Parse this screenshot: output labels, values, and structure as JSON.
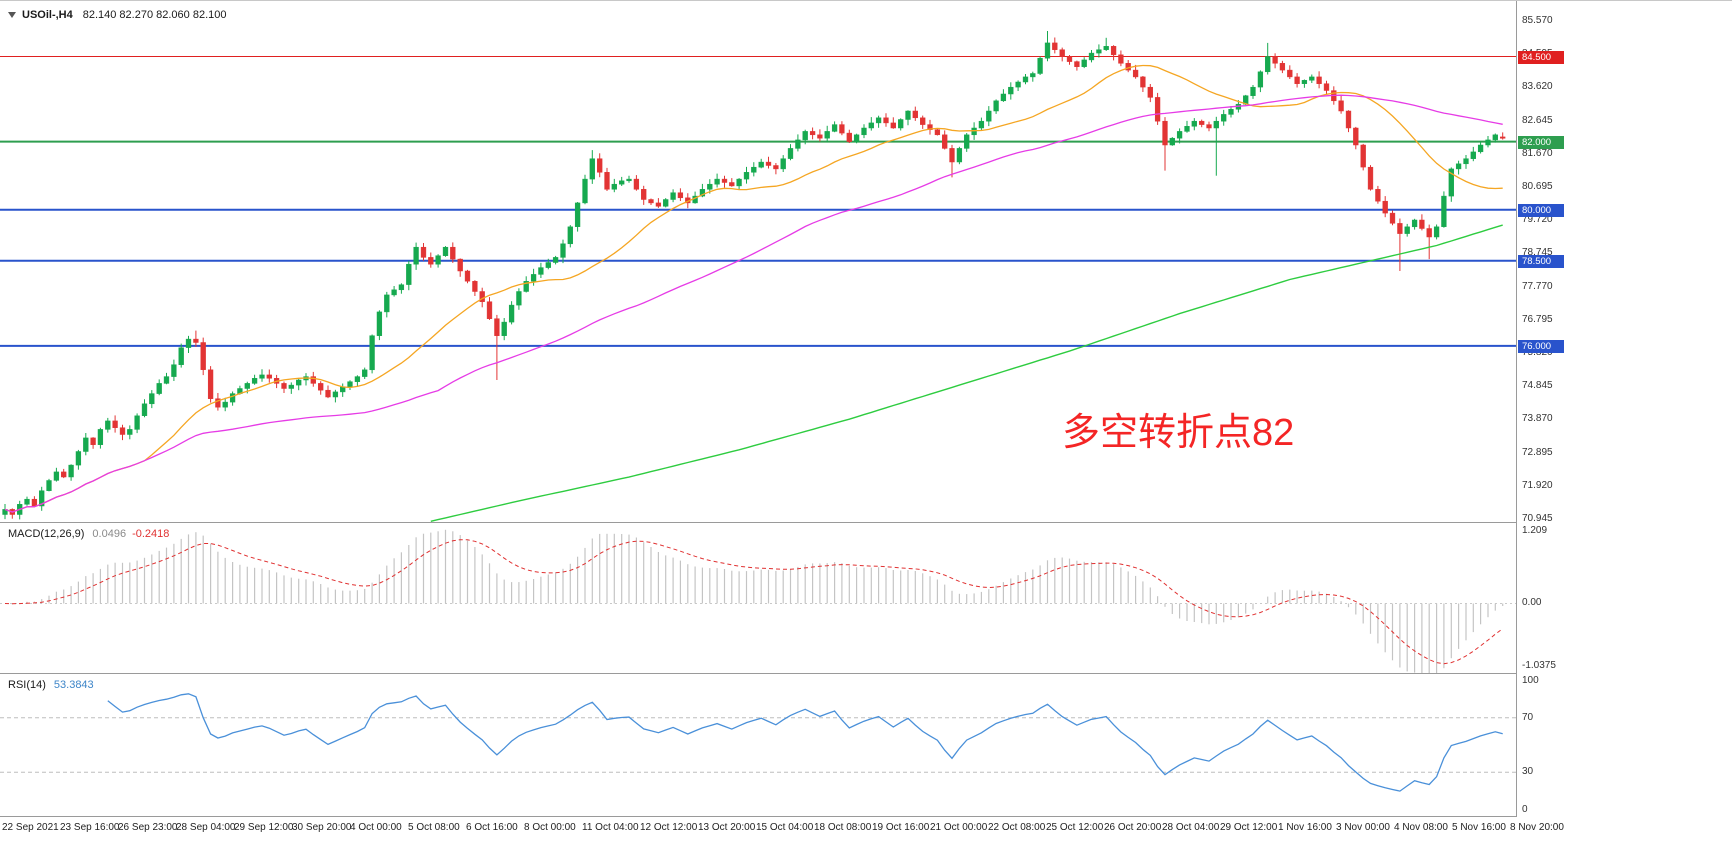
{
  "main_chart": {
    "title": {
      "symbol": "USOil-,H4",
      "ohlc": "82.140 82.270 82.060 82.100"
    },
    "annotation": {
      "text": "多空转折点82",
      "color": "#f42525"
    }
  },
  "macd_panel": {
    "label": "MACD(12,26,9)",
    "value_main": "0.0496",
    "value_signal": "-0.2418",
    "axis_labels": [
      "1.209",
      "0.00",
      "-1.0375"
    ]
  },
  "rsi_panel": {
    "label": "RSI(14)",
    "value": "53.3843",
    "axis_labels": [
      "100",
      "70",
      "30",
      "0"
    ],
    "level_lines": [
      70,
      30
    ]
  },
  "price_axis": {
    "labels": [
      "85.570",
      "84.595",
      "83.620",
      "82.645",
      "81.670",
      "80.695",
      "79.720",
      "78.745",
      "77.770",
      "76.795",
      "75.820",
      "74.845",
      "73.870",
      "72.895",
      "71.920",
      "70.945"
    ]
  },
  "time_axis": {
    "labels": [
      "22 Sep 2021",
      "23 Sep 16:00",
      "26 Sep 23:00",
      "28 Sep 04:00",
      "29 Sep 12:00",
      "30 Sep 20:00",
      "4 Oct 00:00",
      "5 Oct 08:00",
      "6 Oct 16:00",
      "8 Oct 00:00",
      "11 Oct 04:00",
      "12 Oct 12:00",
      "13 Oct 20:00",
      "15 Oct 04:00",
      "18 Oct 08:00",
      "19 Oct 16:00",
      "21 Oct 00:00",
      "22 Oct 08:00",
      "25 Oct 12:00",
      "26 Oct 20:00",
      "28 Oct 04:00",
      "29 Oct 12:00",
      "1 Nov 16:00",
      "3 Nov 00:00",
      "4 Nov 08:00",
      "5 Nov 16:00",
      "8 Nov 20:00"
    ]
  },
  "chart_data": {
    "type": "candlestick",
    "symbol": "USOil-",
    "timeframe": "H4",
    "price_range": [
      70.83,
      86.13
    ],
    "up_color": "#16a94f",
    "down_color": "#e23434",
    "closes": [
      71.2,
      71.05,
      71.35,
      71.5,
      71.3,
      71.75,
      72.05,
      72.3,
      72.15,
      72.5,
      72.9,
      73.3,
      73.1,
      73.55,
      73.8,
      73.6,
      73.4,
      73.55,
      73.95,
      74.3,
      74.6,
      74.9,
      75.1,
      75.45,
      75.95,
      76.2,
      76.1,
      75.3,
      74.45,
      74.2,
      74.35,
      74.6,
      74.75,
      74.9,
      75.05,
      75.15,
      75.05,
      74.9,
      74.75,
      74.85,
      75.0,
      75.1,
      74.9,
      74.7,
      74.5,
      74.65,
      74.8,
      74.95,
      75.1,
      75.3,
      76.3,
      77.0,
      77.5,
      77.65,
      77.8,
      78.4,
      78.9,
      78.6,
      78.4,
      78.65,
      78.9,
      78.55,
      78.2,
      77.9,
      77.6,
      77.3,
      76.8,
      76.3,
      76.7,
      77.2,
      77.6,
      77.9,
      78.1,
      78.3,
      78.45,
      78.6,
      79.0,
      79.5,
      80.2,
      80.9,
      81.5,
      81.1,
      80.6,
      80.75,
      80.85,
      80.9,
      80.6,
      80.3,
      80.2,
      80.1,
      80.3,
      80.5,
      80.35,
      80.2,
      80.4,
      80.6,
      80.75,
      80.9,
      80.8,
      80.7,
      80.9,
      81.1,
      81.25,
      81.4,
      81.3,
      81.2,
      81.5,
      81.8,
      82.05,
      82.3,
      82.2,
      82.1,
      82.3,
      82.5,
      82.25,
      82.0,
      82.2,
      82.4,
      82.55,
      82.7,
      82.55,
      82.4,
      82.65,
      82.9,
      82.7,
      82.5,
      82.35,
      82.2,
      81.8,
      81.4,
      81.8,
      82.2,
      82.4,
      82.6,
      82.9,
      83.2,
      83.4,
      83.6,
      83.75,
      83.9,
      84.0,
      84.45,
      84.9,
      84.7,
      84.5,
      84.35,
      84.2,
      84.4,
      84.6,
      84.7,
      84.8,
      84.55,
      84.3,
      84.1,
      83.9,
      83.6,
      83.3,
      82.6,
      81.9,
      82.1,
      82.3,
      82.45,
      82.6,
      82.5,
      82.4,
      82.6,
      82.8,
      82.95,
      83.1,
      83.35,
      83.6,
      84.05,
      84.5,
      84.3,
      84.1,
      83.9,
      83.7,
      83.8,
      83.9,
      83.7,
      83.5,
      83.2,
      82.9,
      82.4,
      81.9,
      81.25,
      80.6,
      80.25,
      79.9,
      79.6,
      79.3,
      79.5,
      79.7,
      79.45,
      79.2,
      79.5,
      80.4,
      81.2,
      81.35,
      81.5,
      81.7,
      81.9,
      82.05,
      82.2,
      82.1
    ],
    "wick_overrides": {
      "26": {
        "high": 76.45
      },
      "67": {
        "low": 75.0
      },
      "80": {
        "high": 81.75
      },
      "129": {
        "low": 80.95
      },
      "142": {
        "high": 85.25
      },
      "150": {
        "high": 85.05
      },
      "158": {
        "low": 81.15
      },
      "165": {
        "low": 81.0
      },
      "172": {
        "high": 84.9
      },
      "190": {
        "low": 78.2
      },
      "194": {
        "low": 78.55
      },
      "204": {
        "o": 82.14,
        "h": 82.27,
        "l": 82.06,
        "c": 82.1
      }
    },
    "moving_averages": {
      "fast": {
        "period": 20,
        "color": "#f5a623"
      },
      "mid": {
        "period": 60,
        "color": "#e63ce6"
      },
      "slow": {
        "color": "#2ecc40",
        "anchors": [
          [
            58,
            70.85
          ],
          [
            70,
            71.45
          ],
          [
            85,
            72.15
          ],
          [
            100,
            72.95
          ],
          [
            115,
            73.85
          ],
          [
            130,
            74.85
          ],
          [
            145,
            75.85
          ],
          [
            160,
            76.95
          ],
          [
            175,
            77.95
          ],
          [
            185,
            78.45
          ],
          [
            195,
            78.95
          ],
          [
            204,
            79.55
          ]
        ]
      }
    },
    "levels": [
      {
        "price": 84.5,
        "label": "84.500",
        "color": "#e02020",
        "width": 1
      },
      {
        "price": 82.0,
        "label": "82.000",
        "color": "#2e9e4f",
        "width": 2
      },
      {
        "price": 80.0,
        "label": "80.000",
        "color": "#2953cc",
        "width": 2
      },
      {
        "price": 78.5,
        "label": "78.500",
        "color": "#2953cc",
        "width": 2
      },
      {
        "price": 76.0,
        "label": "76.000",
        "color": "#2953cc",
        "width": 2
      }
    ],
    "macd": {
      "fast": 12,
      "slow": 26,
      "signal": 9,
      "range": [
        -1.0375,
        1.209
      ],
      "hist_color": "#c4c4c4",
      "signal_color": "#e03131"
    },
    "rsi": {
      "period": 14,
      "range": [
        0,
        100
      ],
      "color": "#4a90d9"
    }
  }
}
